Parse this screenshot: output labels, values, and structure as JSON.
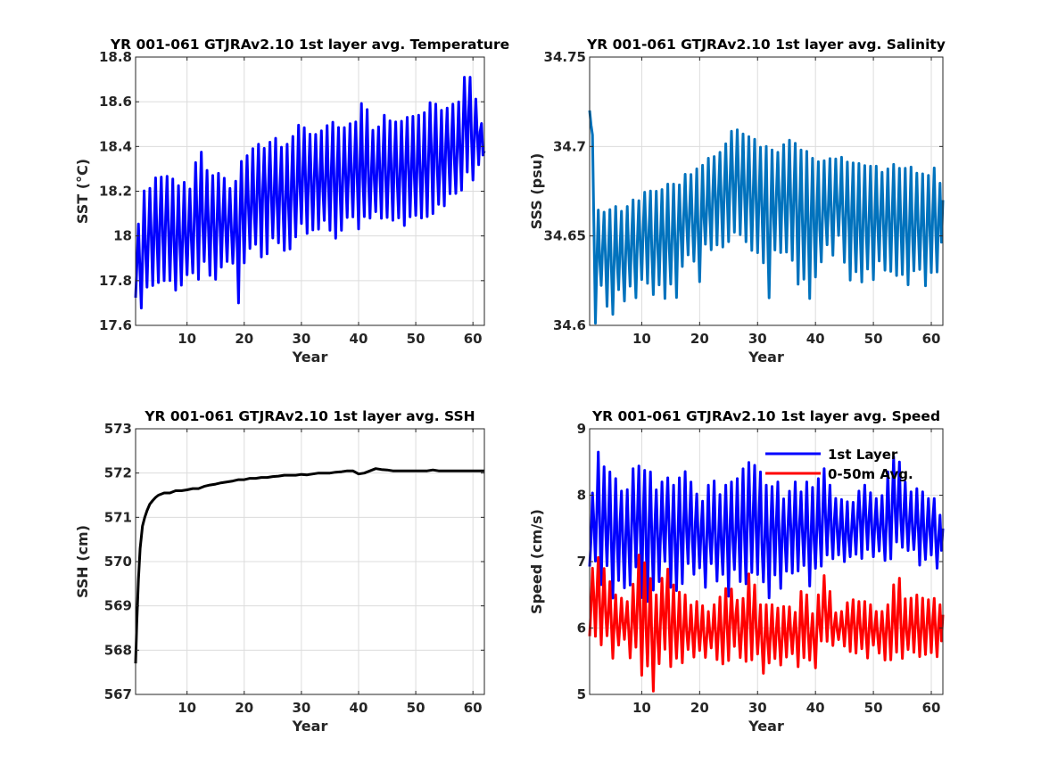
{
  "chart_data": [
    {
      "type": "line",
      "title": "YR 001-061 GTJRAv2.10 1st layer avg. Temperature",
      "xlabel": "Year",
      "ylabel": "SST (°C)",
      "xlim": [
        1,
        62
      ],
      "ylim": [
        17.6,
        18.8
      ],
      "xticks": [
        10,
        20,
        30,
        40,
        50,
        60
      ],
      "yticks": [
        17.6,
        17.8,
        18.0,
        18.2,
        18.4,
        18.6,
        18.8
      ],
      "ytick_labels": [
        "17.6",
        "17.8",
        "18",
        "18.2",
        "18.4",
        "18.6",
        "18.8"
      ],
      "grid": true,
      "series": [
        {
          "color": "#0000ff",
          "x": [
            1,
            2,
            3,
            4,
            5,
            6,
            7,
            8,
            9,
            10,
            11,
            12,
            13,
            14,
            15,
            16,
            17,
            18,
            19,
            20,
            21,
            22,
            23,
            24,
            25,
            26,
            27,
            28,
            29,
            30,
            31,
            32,
            33,
            34,
            35,
            36,
            37,
            38,
            39,
            40,
            41,
            42,
            43,
            44,
            45,
            46,
            47,
            48,
            49,
            50,
            51,
            52,
            53,
            54,
            55,
            56,
            57,
            58,
            59,
            60,
            61,
            62
          ],
          "y": [
            17.95,
            18.2,
            18.22,
            18.25,
            18.27,
            18.28,
            18.29,
            18.22,
            18.28,
            18.2,
            18.22,
            18.45,
            18.34,
            18.28,
            18.26,
            18.3,
            18.25,
            18.2,
            18.29,
            18.39,
            18.38,
            18.4,
            18.42,
            18.41,
            18.43,
            18.45,
            18.4,
            18.42,
            18.47,
            18.53,
            18.45,
            18.46,
            18.5,
            18.48,
            18.52,
            18.5,
            18.47,
            18.51,
            18.5,
            18.52,
            18.68,
            18.45,
            18.5,
            18.53,
            18.55,
            18.52,
            18.5,
            18.57,
            18.52,
            18.55,
            18.53,
            18.58,
            18.64,
            18.55,
            18.59,
            18.6,
            18.58,
            18.62,
            18.8,
            18.62,
            18.64,
            18.38
          ],
          "y_min": [
            17.7,
            17.62,
            17.74,
            17.76,
            17.79,
            17.8,
            17.78,
            17.72,
            17.76,
            17.8,
            17.82,
            17.78,
            17.85,
            17.78,
            17.77,
            17.85,
            17.86,
            17.84,
            17.7,
            17.85,
            17.9,
            17.93,
            17.9,
            17.92,
            17.95,
            17.96,
            17.93,
            17.94,
            17.98,
            18.0,
            18.0,
            18.02,
            18.03,
            18.02,
            18.0,
            17.99,
            17.98,
            18.04,
            18.05,
            18.0,
            18.02,
            18.05,
            18.07,
            18.06,
            18.05,
            18.06,
            18.03,
            18.04,
            18.06,
            18.08,
            18.08,
            18.07,
            18.1,
            18.1,
            18.12,
            18.15,
            18.18,
            18.2,
            18.27,
            18.25,
            18.3,
            18.3
          ]
        }
      ]
    },
    {
      "type": "line",
      "title": "YR 001-061 GTJRAv2.10 1st layer avg. Salinity",
      "xlabel": "Year",
      "ylabel": "SSS (psu)",
      "xlim": [
        1,
        62
      ],
      "ylim": [
        34.6,
        34.75
      ],
      "xticks": [
        10,
        20,
        30,
        40,
        50,
        60
      ],
      "yticks": [
        34.6,
        34.65,
        34.7,
        34.75
      ],
      "ytick_labels": [
        "34.6",
        "34.65",
        "34.7",
        "34.75"
      ],
      "grid": true,
      "series": [
        {
          "color": "#0072bd",
          "x": [
            1,
            2,
            3,
            4,
            5,
            6,
            7,
            8,
            9,
            10,
            11,
            12,
            13,
            14,
            15,
            16,
            17,
            18,
            19,
            20,
            21,
            22,
            23,
            24,
            25,
            26,
            27,
            28,
            29,
            30,
            31,
            32,
            33,
            34,
            35,
            36,
            37,
            38,
            39,
            40,
            41,
            42,
            43,
            44,
            45,
            46,
            47,
            48,
            49,
            50,
            51,
            52,
            53,
            54,
            55,
            56,
            57,
            58,
            59,
            60,
            61,
            62
          ],
          "y": [
            34.748,
            34.665,
            34.664,
            34.666,
            34.668,
            34.665,
            34.663,
            34.67,
            34.672,
            34.674,
            34.677,
            34.674,
            34.676,
            34.678,
            34.68,
            34.678,
            34.683,
            34.686,
            34.688,
            34.687,
            34.692,
            34.695,
            34.698,
            34.7,
            34.703,
            34.714,
            34.708,
            34.706,
            34.705,
            34.703,
            34.702,
            34.698,
            34.7,
            34.7,
            34.702,
            34.705,
            34.703,
            34.7,
            34.695,
            34.693,
            34.69,
            34.697,
            34.693,
            34.695,
            34.693,
            34.692,
            34.691,
            34.69,
            34.69,
            34.688,
            34.69,
            34.687,
            34.688,
            34.692,
            34.69,
            34.688,
            34.689,
            34.688,
            34.687,
            34.687,
            34.689,
            34.67
          ],
          "y_min": [
            34.72,
            34.6,
            34.62,
            34.61,
            34.6,
            34.62,
            34.61,
            34.62,
            34.61,
            34.625,
            34.62,
            34.615,
            34.62,
            34.615,
            34.62,
            34.615,
            34.63,
            34.635,
            34.63,
            34.62,
            34.64,
            34.64,
            34.645,
            34.64,
            34.645,
            34.65,
            34.648,
            34.645,
            34.64,
            34.64,
            34.635,
            34.61,
            34.64,
            34.64,
            34.635,
            34.63,
            34.62,
            34.62,
            34.615,
            34.625,
            34.63,
            34.64,
            34.635,
            34.645,
            34.63,
            34.625,
            34.625,
            34.62,
            34.63,
            34.62,
            34.63,
            34.625,
            34.625,
            34.625,
            34.625,
            34.62,
            34.625,
            34.625,
            34.62,
            34.625,
            34.625,
            34.625
          ]
        }
      ]
    },
    {
      "type": "line",
      "title": "YR 001-061 GTJRAv2.10 1st layer avg. SSH",
      "xlabel": "Year",
      "ylabel": "SSH (cm)",
      "xlim": [
        1,
        62
      ],
      "ylim": [
        567,
        573
      ],
      "xticks": [
        10,
        20,
        30,
        40,
        50,
        60
      ],
      "yticks": [
        567,
        568,
        569,
        570,
        571,
        572,
        573
      ],
      "ytick_labels": [
        "567",
        "568",
        "569",
        "570",
        "571",
        "572",
        "573"
      ],
      "grid": true,
      "series": [
        {
          "color": "#000000",
          "x": [
            1,
            1.2,
            1.5,
            1.8,
            2.2,
            2.6,
            3,
            3.5,
            4,
            4.5,
            5,
            6,
            7,
            8,
            9,
            10,
            11,
            12,
            13,
            14,
            15,
            16,
            17,
            18,
            19,
            20,
            21,
            22,
            23,
            24,
            25,
            26,
            27,
            28,
            29,
            30,
            31,
            32,
            33,
            34,
            35,
            36,
            37,
            38,
            39,
            40,
            41,
            42,
            43,
            44,
            45,
            46,
            47,
            48,
            49,
            50,
            51,
            52,
            53,
            54,
            55,
            56,
            57,
            58,
            59,
            60,
            61,
            62
          ],
          "y": [
            567.7,
            568.6,
            569.6,
            570.3,
            570.8,
            571.0,
            571.15,
            571.3,
            571.38,
            571.45,
            571.5,
            571.55,
            571.55,
            571.6,
            571.6,
            571.62,
            571.65,
            571.65,
            571.7,
            571.73,
            571.75,
            571.78,
            571.8,
            571.82,
            571.85,
            571.85,
            571.88,
            571.88,
            571.9,
            571.9,
            571.92,
            571.93,
            571.95,
            571.95,
            571.95,
            571.97,
            571.96,
            571.98,
            572.0,
            572.0,
            572.0,
            572.02,
            572.03,
            572.05,
            572.05,
            571.98,
            572.0,
            572.05,
            572.1,
            572.08,
            572.07,
            572.05,
            572.05,
            572.05,
            572.05,
            572.05,
            572.05,
            572.05,
            572.07,
            572.05,
            572.05,
            572.05,
            572.05,
            572.05,
            572.05,
            572.05,
            572.05,
            572.05
          ]
        }
      ]
    },
    {
      "type": "line",
      "title": "YR 001-061 GTJRAv2.10 1st layer avg. Speed",
      "xlabel": "Year",
      "ylabel": "Speed (cm/s)",
      "xlim": [
        1,
        62
      ],
      "ylim": [
        5,
        9
      ],
      "xticks": [
        10,
        20,
        30,
        40,
        50,
        60
      ],
      "yticks": [
        5,
        6,
        7,
        8,
        9
      ],
      "ytick_labels": [
        "5",
        "6",
        "7",
        "8",
        "9"
      ],
      "grid": true,
      "legend": "top-right",
      "series": [
        {
          "name": "1st Layer",
          "color": "#0000ff",
          "x": [
            1,
            2,
            3,
            4,
            5,
            6,
            7,
            8,
            9,
            10,
            11,
            12,
            13,
            14,
            15,
            16,
            17,
            18,
            19,
            20,
            21,
            22,
            23,
            24,
            25,
            26,
            27,
            28,
            29,
            30,
            31,
            32,
            33,
            34,
            35,
            36,
            37,
            38,
            39,
            40,
            41,
            42,
            43,
            44,
            45,
            46,
            47,
            48,
            49,
            50,
            51,
            52,
            53,
            54,
            55,
            56,
            57,
            58,
            59,
            60,
            61,
            62
          ],
          "y": [
            7.3,
            8.9,
            8.4,
            8.5,
            8.2,
            8.3,
            8.0,
            8.2,
            8.6,
            8.5,
            8.4,
            8.3,
            8.0,
            8.4,
            8.3,
            8.0,
            8.6,
            8.3,
            8.2,
            8.0,
            7.9,
            8.4,
            8.1,
            8.0,
            8.3,
            8.1,
            8.4,
            8.6,
            8.4,
            8.5,
            8.2,
            8.1,
            8.3,
            8.1,
            7.9,
            8.3,
            8.1,
            8.0,
            8.4,
            7.9,
            8.6,
            8.2,
            8.1,
            7.9,
            8.0,
            7.8,
            8.0,
            8.2,
            8.1,
            8.0,
            7.9,
            8.1,
            8.6,
            8.7,
            8.3,
            8.1,
            8.0,
            8.2,
            7.9,
            8.0,
            7.9,
            7.5
          ],
          "y_min": [
            6.9,
            6.8,
            6.6,
            6.8,
            6.4,
            6.7,
            6.6,
            6.5,
            6.8,
            6.4,
            6.4,
            6.5,
            6.7,
            6.9,
            6.6,
            6.4,
            6.6,
            6.9,
            6.7,
            6.8,
            6.6,
            6.8,
            6.6,
            6.7,
            6.4,
            6.8,
            6.7,
            6.5,
            6.8,
            6.7,
            6.6,
            6.4,
            6.8,
            6.5,
            6.8,
            6.8,
            6.8,
            6.9,
            6.5,
            6.8,
            6.8,
            7.1,
            7.0,
            7.1,
            7.0,
            7.0,
            7.1,
            7.0,
            7.1,
            7.0,
            7.1,
            6.9,
            7.0,
            7.2,
            7.1,
            7.1,
            7.1,
            6.9,
            7.0,
            7.1,
            6.9,
            6.8
          ]
        },
        {
          "name": "0-50m Avg.",
          "color": "#ff0000",
          "x": [
            1,
            2,
            3,
            4,
            5,
            6,
            7,
            8,
            9,
            10,
            11,
            12,
            13,
            14,
            15,
            16,
            17,
            18,
            19,
            20,
            21,
            22,
            23,
            24,
            25,
            26,
            27,
            28,
            29,
            30,
            31,
            32,
            33,
            34,
            35,
            36,
            37,
            38,
            39,
            40,
            41,
            42,
            43,
            44,
            45,
            46,
            47,
            48,
            49,
            50,
            51,
            52,
            53,
            54,
            55,
            56,
            57,
            58,
            59,
            60,
            61,
            62
          ],
          "y": [
            6.6,
            7.2,
            7.0,
            6.8,
            6.6,
            6.4,
            6.5,
            6.3,
            7.1,
            7.1,
            6.9,
            6.6,
            6.4,
            7.1,
            6.8,
            6.5,
            6.6,
            6.4,
            6.3,
            6.5,
            6.2,
            6.3,
            6.4,
            6.6,
            6.6,
            6.7,
            6.2,
            6.8,
            7.0,
            6.3,
            6.4,
            6.3,
            6.4,
            6.2,
            6.5,
            6.2,
            6.3,
            6.8,
            6.3,
            6.2,
            6.8,
            6.8,
            6.3,
            6.2,
            6.3,
            6.5,
            6.4,
            6.4,
            6.4,
            6.3,
            6.2,
            6.3,
            6.4,
            7.0,
            6.5,
            6.4,
            6.5,
            6.5,
            6.4,
            6.5,
            6.5,
            6.2
          ],
          "y_min": [
            5.8,
            5.8,
            5.6,
            5.8,
            5.5,
            5.7,
            5.8,
            5.5,
            5.6,
            5.2,
            5.3,
            5.05,
            5.4,
            5.6,
            5.4,
            5.5,
            5.4,
            5.6,
            5.5,
            5.6,
            5.5,
            5.7,
            5.5,
            5.4,
            5.5,
            5.7,
            5.5,
            5.4,
            5.5,
            5.6,
            5.3,
            5.4,
            5.5,
            5.4,
            5.5,
            5.6,
            5.4,
            5.5,
            5.5,
            5.4,
            5.7,
            5.8,
            5.7,
            5.8,
            5.7,
            5.6,
            5.6,
            5.6,
            5.5,
            5.7,
            5.6,
            5.5,
            5.5,
            5.6,
            5.5,
            5.6,
            5.6,
            5.5,
            5.6,
            5.6,
            5.5,
            5.5
          ]
        }
      ]
    }
  ]
}
